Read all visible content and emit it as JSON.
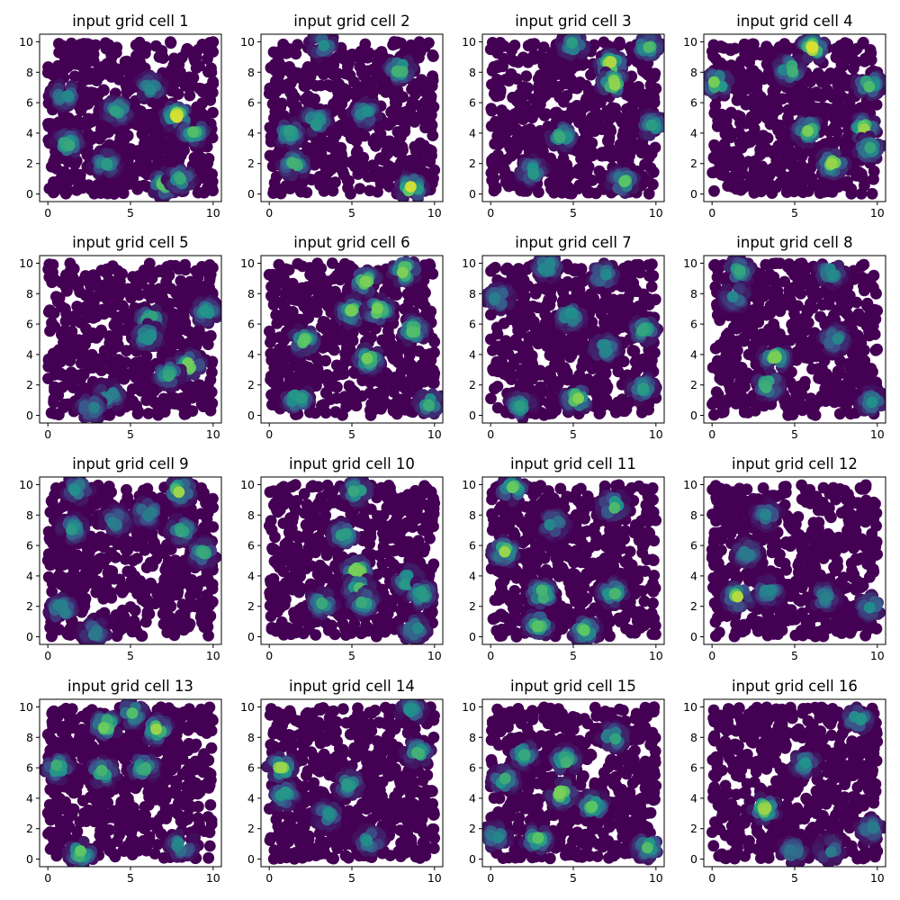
{
  "chart_data": {
    "type": "scatter",
    "layout": "4x4 grid of subplots",
    "colormap": "viridis",
    "colormap_stops": [
      "#440154",
      "#3b528b",
      "#21918c",
      "#5ec962",
      "#fde725"
    ],
    "background_points_per_panel": 600,
    "background_point_value": 0,
    "value_range": [
      0,
      1
    ],
    "xlim": [
      -0.5,
      10.5
    ],
    "ylim": [
      -0.5,
      10.5
    ],
    "xticks": [
      "0",
      "5",
      "10"
    ],
    "yticks": [
      "0",
      "2",
      "4",
      "6",
      "8",
      "10"
    ],
    "grid": false,
    "panels": [
      {
        "title": "input grid cell 1",
        "hotspots": [
          [
            1,
            6.5,
            0.55
          ],
          [
            1.2,
            3.3,
            0.65
          ],
          [
            3.5,
            2,
            0.55
          ],
          [
            4.2,
            5.5,
            0.6
          ],
          [
            6.2,
            7,
            0.5
          ],
          [
            7.8,
            5.1,
            0.95
          ],
          [
            8.8,
            4.1,
            0.7
          ],
          [
            7,
            0.6,
            0.75
          ],
          [
            8,
            1,
            0.6
          ]
        ]
      },
      {
        "title": "input grid cell 2",
        "hotspots": [
          [
            1.2,
            4,
            0.6
          ],
          [
            1.5,
            1.9,
            0.7
          ],
          [
            2.8,
            4.8,
            0.65
          ],
          [
            5.8,
            5.3,
            0.55
          ],
          [
            7.9,
            8.2,
            0.75
          ],
          [
            8.6,
            0.4,
            0.95
          ],
          [
            3.2,
            9.8,
            0.5
          ]
        ]
      },
      {
        "title": "input grid cell 3",
        "hotspots": [
          [
            7.3,
            8.5,
            1.0
          ],
          [
            7.4,
            7.3,
            0.9
          ],
          [
            9.5,
            9.7,
            0.7
          ],
          [
            5,
            9.8,
            0.6
          ],
          [
            4.3,
            3.8,
            0.65
          ],
          [
            2.5,
            1.5,
            0.6
          ],
          [
            8,
            0.8,
            0.75
          ],
          [
            9.8,
            4.5,
            0.55
          ]
        ]
      },
      {
        "title": "input grid cell 4",
        "hotspots": [
          [
            0.3,
            7.3,
            0.9
          ],
          [
            4.7,
            8.2,
            0.8
          ],
          [
            6.1,
            9.6,
            0.95
          ],
          [
            9.5,
            7.2,
            0.75
          ],
          [
            5.8,
            4.2,
            0.8
          ],
          [
            9.2,
            4.3,
            0.85
          ],
          [
            7.3,
            2,
            0.85
          ],
          [
            9.5,
            3,
            0.6
          ]
        ]
      },
      {
        "title": "input grid cell 5",
        "hotspots": [
          [
            6.2,
            6.3,
            0.7
          ],
          [
            6,
            5.2,
            0.6
          ],
          [
            9.6,
            6.8,
            0.55
          ],
          [
            8.6,
            3.3,
            0.85
          ],
          [
            7.3,
            2.7,
            0.6
          ],
          [
            3.7,
            1.3,
            0.55
          ],
          [
            2.6,
            0.5,
            0.5
          ]
        ]
      },
      {
        "title": "input grid cell 6",
        "hotspots": [
          [
            2.1,
            4.9,
            0.75
          ],
          [
            1.7,
            1.1,
            0.7
          ],
          [
            5.8,
            8.8,
            0.8
          ],
          [
            8.2,
            9.5,
            0.9
          ],
          [
            5,
            6.8,
            0.8
          ],
          [
            6.6,
            6.9,
            0.85
          ],
          [
            8.7,
            5.6,
            0.75
          ],
          [
            6,
            3.7,
            0.8
          ],
          [
            9.7,
            0.8,
            0.65
          ]
        ]
      },
      {
        "title": "input grid cell 7",
        "hotspots": [
          [
            0.5,
            7.7,
            0.55
          ],
          [
            3.4,
            9.8,
            0.6
          ],
          [
            6.8,
            9.2,
            0.55
          ],
          [
            4.8,
            6.5,
            0.6
          ],
          [
            9.3,
            5.6,
            0.6
          ],
          [
            6.9,
            4.4,
            0.55
          ],
          [
            5.2,
            1.1,
            0.85
          ],
          [
            9.2,
            1.8,
            0.55
          ],
          [
            1.8,
            0.6,
            0.55
          ]
        ]
      },
      {
        "title": "input grid cell 8",
        "hotspots": [
          [
            1.6,
            9.5,
            0.6
          ],
          [
            1.4,
            7.8,
            0.5
          ],
          [
            7.2,
            9.4,
            0.55
          ],
          [
            7.4,
            5,
            0.55
          ],
          [
            3.8,
            3.8,
            0.8
          ],
          [
            3.4,
            2,
            0.75
          ],
          [
            9.7,
            0.9,
            0.5
          ]
        ]
      },
      {
        "title": "input grid cell 9",
        "hotspots": [
          [
            1.8,
            9.7,
            0.55
          ],
          [
            8,
            9.6,
            0.9
          ],
          [
            1.5,
            7.1,
            0.55
          ],
          [
            4.1,
            7.6,
            0.5
          ],
          [
            6,
            8.2,
            0.55
          ],
          [
            8.1,
            7,
            0.6
          ],
          [
            9.4,
            5.5,
            0.6
          ],
          [
            0.8,
            1.8,
            0.6
          ],
          [
            2.8,
            0.3,
            0.45
          ]
        ]
      },
      {
        "title": "input grid cell 10",
        "hotspots": [
          [
            5.3,
            4.3,
            0.9
          ],
          [
            5.4,
            3.2,
            0.7
          ],
          [
            5.7,
            2.3,
            0.65
          ],
          [
            4.5,
            6.7,
            0.6
          ],
          [
            5.3,
            9.6,
            0.7
          ],
          [
            8.4,
            3.7,
            0.75
          ],
          [
            9.2,
            2.8,
            0.6
          ],
          [
            8.8,
            0.5,
            0.55
          ],
          [
            3.2,
            2.2,
            0.6
          ]
        ]
      },
      {
        "title": "input grid cell 11",
        "hotspots": [
          [
            1.3,
            9.7,
            0.8
          ],
          [
            0.8,
            5.6,
            0.85
          ],
          [
            3.8,
            7.4,
            0.55
          ],
          [
            7.4,
            8.6,
            0.75
          ],
          [
            3.1,
            2.8,
            0.85
          ],
          [
            2.9,
            0.8,
            0.75
          ],
          [
            5.7,
            0.4,
            0.75
          ],
          [
            7.4,
            2.9,
            0.7
          ]
        ]
      },
      {
        "title": "input grid cell 12",
        "hotspots": [
          [
            1.6,
            2.6,
            0.9
          ],
          [
            3.4,
            3,
            0.5
          ],
          [
            3.3,
            8,
            0.45
          ],
          [
            2.1,
            5.5,
            0.45
          ],
          [
            9.6,
            2,
            0.5
          ],
          [
            6.8,
            2.6,
            0.45
          ]
        ]
      },
      {
        "title": "input grid cell 13",
        "hotspots": [
          [
            3.5,
            8.8,
            0.9
          ],
          [
            6.6,
            8.5,
            0.85
          ],
          [
            5.1,
            9.6,
            0.7
          ],
          [
            0.6,
            6,
            0.7
          ],
          [
            3.3,
            5.7,
            0.7
          ],
          [
            5.8,
            6,
            0.65
          ],
          [
            2,
            0.4,
            0.8
          ],
          [
            8.1,
            0.9,
            0.6
          ]
        ]
      },
      {
        "title": "input grid cell 14",
        "hotspots": [
          [
            0.7,
            6,
            0.85
          ],
          [
            0.9,
            4.2,
            0.6
          ],
          [
            4.8,
            4.9,
            0.55
          ],
          [
            3.5,
            2.9,
            0.5
          ],
          [
            6.1,
            1.2,
            0.55
          ],
          [
            9,
            7,
            0.65
          ],
          [
            8.6,
            9.8,
            0.5
          ]
        ]
      },
      {
        "title": "input grid cell 15",
        "hotspots": [
          [
            4.3,
            4.3,
            0.85
          ],
          [
            4.5,
            6.5,
            0.7
          ],
          [
            6.2,
            3.5,
            0.75
          ],
          [
            0.8,
            5.2,
            0.65
          ],
          [
            2,
            6.9,
            0.6
          ],
          [
            7.4,
            8,
            0.65
          ],
          [
            2.8,
            1.3,
            0.75
          ],
          [
            9.5,
            0.8,
            0.7
          ],
          [
            0.3,
            1.5,
            0.5
          ]
        ]
      },
      {
        "title": "input grid cell 16",
        "hotspots": [
          [
            3.2,
            3.3,
            0.85
          ],
          [
            8.8,
            9.2,
            0.6
          ],
          [
            5.6,
            6.3,
            0.5
          ],
          [
            9.6,
            2,
            0.45
          ],
          [
            4.9,
            0.5,
            0.45
          ],
          [
            7.1,
            0.6,
            0.45
          ]
        ]
      }
    ]
  }
}
